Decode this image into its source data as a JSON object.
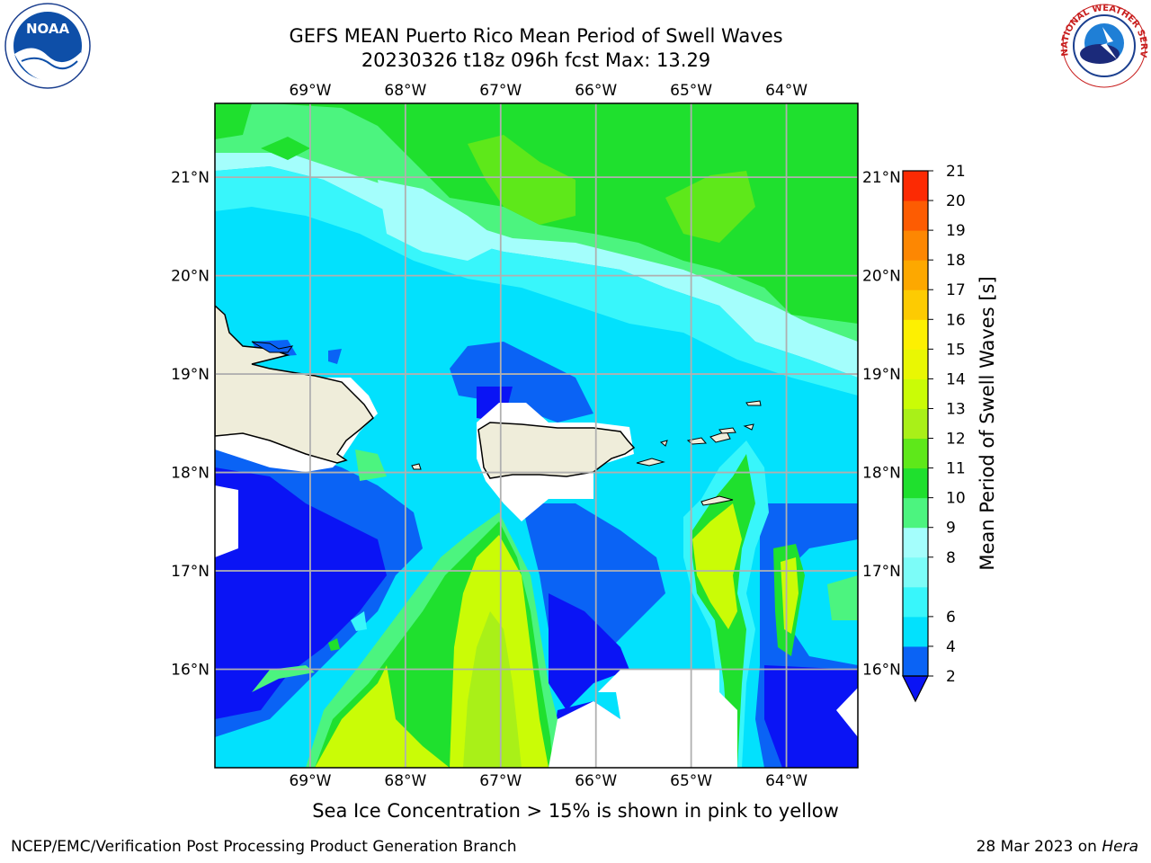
{
  "title": {
    "line1": "GEFS MEAN Puerto Rico Mean Period of Swell Waves",
    "line2": "20230326 t18z 096h fcst   Max: 13.29"
  },
  "map": {
    "lon_labels": [
      "69°W",
      "68°W",
      "67°W",
      "66°W",
      "65°W",
      "64°W"
    ],
    "lat_labels": [
      "21°N",
      "20°N",
      "19°N",
      "18°N",
      "17°N",
      "16°N"
    ],
    "lon_values": [
      -69,
      -68,
      -67,
      -66,
      -65,
      -64
    ],
    "lat_values": [
      21,
      20,
      19,
      18,
      17,
      16
    ],
    "lon_range": [
      -70.0,
      -63.25
    ],
    "lat_range": [
      15.0,
      21.75
    ]
  },
  "colorbar": {
    "label": "Mean Period of Swell Waves [s]",
    "levels": [
      2,
      4,
      6,
      7,
      8,
      9,
      10,
      11,
      12,
      13,
      14,
      15,
      16,
      17,
      18,
      19,
      20,
      21
    ],
    "tick_labels": [
      "2",
      "4",
      "6",
      "8",
      "9",
      "10",
      "11",
      "12",
      "13",
      "14",
      "15",
      "16",
      "17",
      "18",
      "19",
      "20",
      "21"
    ],
    "colors": [
      "#0a63f5",
      "#02e1fd",
      "#38f6fb",
      "#7cfcf8",
      "#a4fefc",
      "#4cf47f",
      "#1fe02e",
      "#5ee81a",
      "#a9f018",
      "#cafc06",
      "#e9f703",
      "#fdf001",
      "#fdcb02",
      "#fda800",
      "#fd8702",
      "#fd5c02",
      "#fc2a03",
      "#fe0206"
    ],
    "under_color": "#0a14f5"
  },
  "ice_note": "Sea Ice Concentration > 15% is shown in pink to yellow",
  "footer": {
    "left": "NCEP/EMC/Verification Post Processing Product Generation Branch",
    "right_date": "28 Mar 2023 on",
    "right_host": "Hera"
  },
  "logos": {
    "noaa_text": "NOAA",
    "nws_ring_text": "NATIONAL WEATHER SERVICE"
  }
}
